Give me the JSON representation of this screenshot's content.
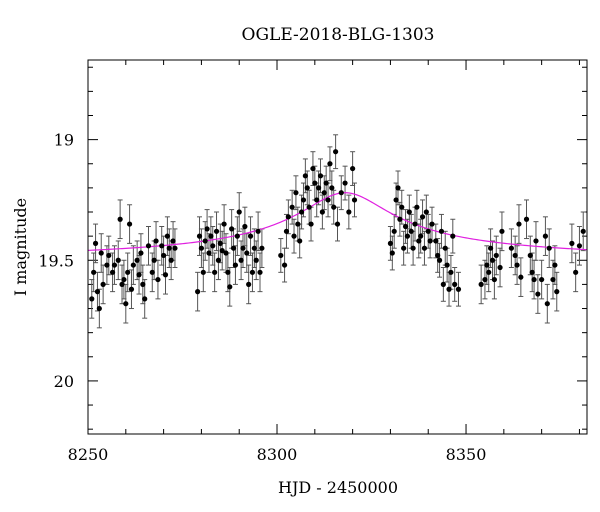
{
  "chart_data": {
    "type": "scatter",
    "title": "OGLE-2018-BLG-1303",
    "xlabel": "HJD - 2450000",
    "ylabel": "I magnitude",
    "xlim": [
      8250,
      8382
    ],
    "ylim": [
      20.22,
      18.67
    ],
    "y_inverted": true,
    "x_ticks": [
      8250,
      8300,
      8350
    ],
    "y_ticks": [
      19,
      19.5,
      20
    ],
    "y_tick_labels": [
      "19",
      "19.5",
      "20"
    ],
    "grid": false,
    "colors": {
      "points": "#000000",
      "errorbars": "#555555",
      "model": "#e020e0"
    },
    "model": {
      "name": "model",
      "baseline": 19.51,
      "peak_mag": 19.22,
      "t0": 8318,
      "tE": 18
    },
    "series": [
      {
        "name": "",
        "points": [
          [
            8251,
            19.66,
            0.08
          ],
          [
            8251.5,
            19.55,
            0.08
          ],
          [
            8252,
            19.43,
            0.08
          ],
          [
            8252.5,
            19.63,
            0.08
          ],
          [
            8253,
            19.7,
            0.08
          ],
          [
            8253.5,
            19.47,
            0.08
          ],
          [
            8254,
            19.6,
            0.08
          ],
          [
            8255,
            19.52,
            0.08
          ],
          [
            8255.5,
            19.48,
            0.08
          ],
          [
            8256.5,
            19.55,
            0.08
          ],
          [
            8257,
            19.52,
            0.08
          ],
          [
            8258,
            19.5,
            0.08
          ],
          [
            8258.5,
            19.33,
            0.08
          ],
          [
            8259,
            19.6,
            0.08
          ],
          [
            8259.5,
            19.58,
            0.08
          ],
          [
            8260,
            19.68,
            0.08
          ],
          [
            8260.5,
            19.55,
            0.08
          ],
          [
            8261,
            19.35,
            0.08
          ],
          [
            8261.5,
            19.62,
            0.08
          ],
          [
            8262,
            19.52,
            0.08
          ],
          [
            8263,
            19.5,
            0.08
          ],
          [
            8263.5,
            19.56,
            0.08
          ],
          [
            8264,
            19.47,
            0.08
          ],
          [
            8264.5,
            19.6,
            0.08
          ],
          [
            8265,
            19.66,
            0.08
          ],
          [
            8266,
            19.44,
            0.08
          ],
          [
            8267,
            19.55,
            0.08
          ],
          [
            8267.5,
            19.5,
            0.08
          ],
          [
            8268,
            19.42,
            0.08
          ],
          [
            8268.5,
            19.58,
            0.08
          ],
          [
            8269.5,
            19.44,
            0.08
          ],
          [
            8270,
            19.48,
            0.08
          ],
          [
            8270.5,
            19.56,
            0.08
          ],
          [
            8271,
            19.4,
            0.08
          ],
          [
            8271.5,
            19.45,
            0.08
          ],
          [
            8272,
            19.5,
            0.08
          ],
          [
            8272.5,
            19.42,
            0.08
          ],
          [
            8273,
            19.45,
            0.08
          ],
          [
            8279,
            19.63,
            0.08
          ],
          [
            8279.5,
            19.4,
            0.08
          ],
          [
            8280,
            19.45,
            0.08
          ],
          [
            8280.5,
            19.55,
            0.08
          ],
          [
            8281,
            19.42,
            0.08
          ],
          [
            8281.5,
            19.37,
            0.08
          ],
          [
            8282,
            19.47,
            0.08
          ],
          [
            8282.5,
            19.4,
            0.08
          ],
          [
            8283,
            19.44,
            0.08
          ],
          [
            8283.5,
            19.55,
            0.08
          ],
          [
            8284,
            19.38,
            0.08
          ],
          [
            8284.5,
            19.5,
            0.08
          ],
          [
            8285,
            19.43,
            0.08
          ],
          [
            8285.5,
            19.46,
            0.08
          ],
          [
            8286,
            19.35,
            0.08
          ],
          [
            8286.5,
            19.47,
            0.08
          ],
          [
            8287,
            19.55,
            0.08
          ],
          [
            8287.5,
            19.61,
            0.08
          ],
          [
            8288,
            19.37,
            0.08
          ],
          [
            8288.5,
            19.45,
            0.08
          ],
          [
            8289,
            19.52,
            0.08
          ],
          [
            8289.5,
            19.4,
            0.08
          ],
          [
            8290,
            19.3,
            0.08
          ],
          [
            8290.5,
            19.5,
            0.08
          ],
          [
            8291,
            19.45,
            0.08
          ],
          [
            8291.5,
            19.36,
            0.08
          ],
          [
            8292,
            19.47,
            0.08
          ],
          [
            8292.5,
            19.6,
            0.08
          ],
          [
            8293,
            19.4,
            0.08
          ],
          [
            8293.5,
            19.55,
            0.08
          ],
          [
            8294,
            19.45,
            0.08
          ],
          [
            8294.5,
            19.5,
            0.08
          ],
          [
            8295,
            19.38,
            0.08
          ],
          [
            8295.5,
            19.55,
            0.08
          ],
          [
            8296,
            19.45,
            0.08
          ],
          [
            8301,
            19.48,
            0.07
          ],
          [
            8302,
            19.52,
            0.07
          ],
          [
            8302.5,
            19.38,
            0.07
          ],
          [
            8303,
            19.32,
            0.07
          ],
          [
            8304,
            19.28,
            0.07
          ],
          [
            8304.5,
            19.4,
            0.07
          ],
          [
            8305,
            19.22,
            0.07
          ],
          [
            8305.5,
            19.35,
            0.07
          ],
          [
            8306,
            19.42,
            0.07
          ],
          [
            8306.5,
            19.3,
            0.07
          ],
          [
            8307,
            19.25,
            0.07
          ],
          [
            8307.5,
            19.15,
            0.07
          ],
          [
            8308,
            19.2,
            0.07
          ],
          [
            8308.5,
            19.28,
            0.07
          ],
          [
            8309,
            19.35,
            0.07
          ],
          [
            8309.5,
            19.12,
            0.07
          ],
          [
            8310,
            19.18,
            0.07
          ],
          [
            8310.5,
            19.25,
            0.07
          ],
          [
            8311,
            19.2,
            0.07
          ],
          [
            8311.5,
            19.15,
            0.07
          ],
          [
            8312,
            19.3,
            0.07
          ],
          [
            8312.5,
            19.22,
            0.07
          ],
          [
            8313,
            19.18,
            0.07
          ],
          [
            8313.5,
            19.25,
            0.07
          ],
          [
            8314,
            19.1,
            0.07
          ],
          [
            8314.5,
            19.2,
            0.07
          ],
          [
            8315,
            19.28,
            0.07
          ],
          [
            8315.5,
            19.05,
            0.07
          ],
          [
            8316,
            19.35,
            0.07
          ],
          [
            8317,
            19.22,
            0.07
          ],
          [
            8318,
            19.18,
            0.07
          ],
          [
            8319,
            19.3,
            0.07
          ],
          [
            8320,
            19.12,
            0.07
          ],
          [
            8320.5,
            19.25,
            0.07
          ],
          [
            8330,
            19.43,
            0.07
          ],
          [
            8330.5,
            19.47,
            0.07
          ],
          [
            8331,
            19.38,
            0.07
          ],
          [
            8331.5,
            19.25,
            0.07
          ],
          [
            8332,
            19.2,
            0.07
          ],
          [
            8332.5,
            19.33,
            0.07
          ],
          [
            8333,
            19.28,
            0.07
          ],
          [
            8333.5,
            19.45,
            0.07
          ],
          [
            8334,
            19.36,
            0.07
          ],
          [
            8334.5,
            19.4,
            0.07
          ],
          [
            8335,
            19.3,
            0.07
          ],
          [
            8335.5,
            19.38,
            0.07
          ],
          [
            8336,
            19.45,
            0.07
          ],
          [
            8336.5,
            19.35,
            0.07
          ],
          [
            8337,
            19.28,
            0.07
          ],
          [
            8337.5,
            19.42,
            0.07
          ],
          [
            8338,
            19.4,
            0.07
          ],
          [
            8338.5,
            19.32,
            0.07
          ],
          [
            8339,
            19.45,
            0.07
          ],
          [
            8339.5,
            19.3,
            0.07
          ],
          [
            8340,
            19.38,
            0.07
          ],
          [
            8340.5,
            19.42,
            0.07
          ],
          [
            8341,
            19.35,
            0.07
          ],
          [
            8342,
            19.42,
            0.07
          ],
          [
            8342.5,
            19.48,
            0.07
          ],
          [
            8343,
            19.5,
            0.07
          ],
          [
            8343.5,
            19.38,
            0.07
          ],
          [
            8344,
            19.6,
            0.07
          ],
          [
            8344.5,
            19.45,
            0.07
          ],
          [
            8345,
            19.52,
            0.07
          ],
          [
            8345.5,
            19.62,
            0.07
          ],
          [
            8346,
            19.55,
            0.07
          ],
          [
            8346.5,
            19.4,
            0.07
          ],
          [
            8347,
            19.6,
            0.07
          ],
          [
            8348,
            19.62,
            0.07
          ],
          [
            8354,
            19.6,
            0.08
          ],
          [
            8355,
            19.58,
            0.08
          ],
          [
            8355.5,
            19.52,
            0.08
          ],
          [
            8356,
            19.55,
            0.08
          ],
          [
            8356.5,
            19.45,
            0.08
          ],
          [
            8357,
            19.5,
            0.08
          ],
          [
            8357.5,
            19.58,
            0.08
          ],
          [
            8358,
            19.48,
            0.08
          ],
          [
            8359,
            19.53,
            0.08
          ],
          [
            8359.5,
            19.38,
            0.08
          ],
          [
            8362,
            19.45,
            0.08
          ],
          [
            8363,
            19.48,
            0.08
          ],
          [
            8363.5,
            19.52,
            0.08
          ],
          [
            8364,
            19.35,
            0.08
          ],
          [
            8364.5,
            19.57,
            0.08
          ],
          [
            8366,
            19.33,
            0.08
          ],
          [
            8367,
            19.48,
            0.08
          ],
          [
            8367.5,
            19.55,
            0.08
          ],
          [
            8368,
            19.58,
            0.08
          ],
          [
            8368.5,
            19.42,
            0.08
          ],
          [
            8369,
            19.64,
            0.08
          ],
          [
            8370,
            19.58,
            0.08
          ],
          [
            8371,
            19.4,
            0.08
          ],
          [
            8371.5,
            19.68,
            0.08
          ],
          [
            8372,
            19.45,
            0.08
          ],
          [
            8373,
            19.58,
            0.08
          ],
          [
            8373.5,
            19.52,
            0.08
          ],
          [
            8374,
            19.63,
            0.08
          ],
          [
            8378,
            19.43,
            0.08
          ],
          [
            8379,
            19.55,
            0.08
          ],
          [
            8380,
            19.44,
            0.08
          ],
          [
            8381,
            19.38,
            0.08
          ]
        ]
      }
    ]
  }
}
